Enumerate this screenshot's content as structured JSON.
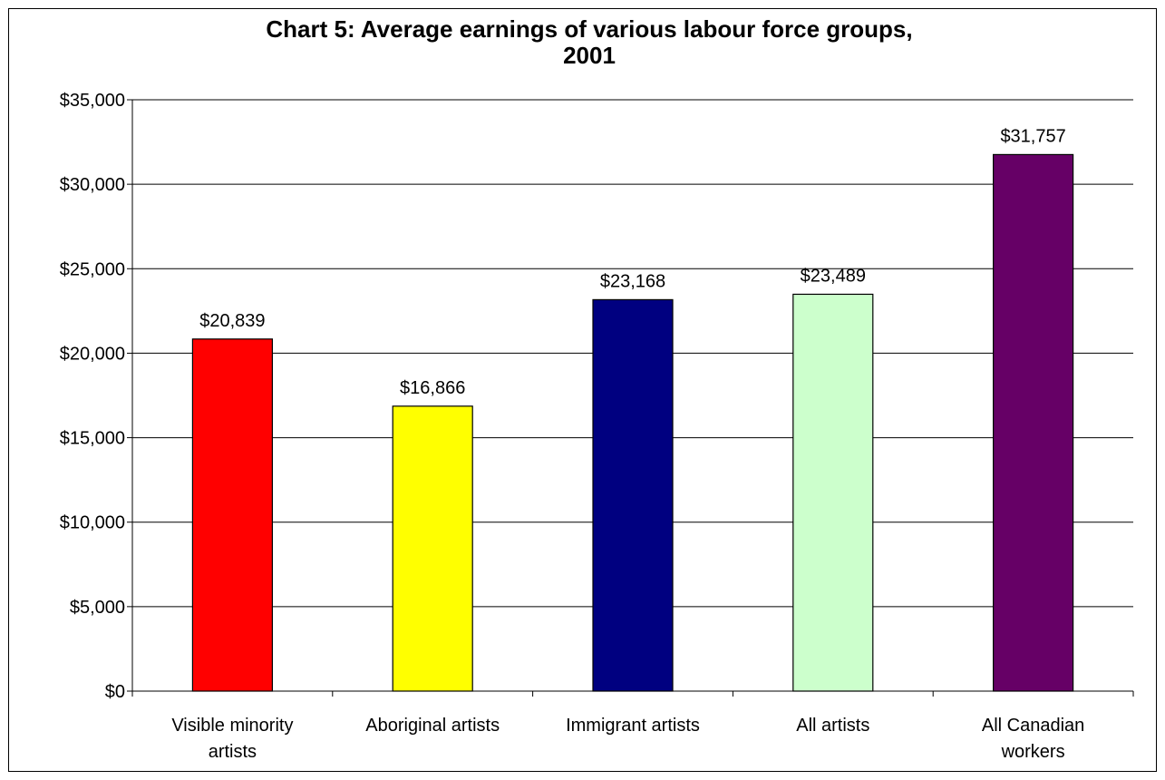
{
  "chart_data": {
    "type": "bar",
    "title_lines": [
      "Chart 5: Average earnings of various labour force groups,",
      "2001"
    ],
    "categories": [
      [
        "Visible minority",
        "artists"
      ],
      [
        "Aboriginal artists"
      ],
      [
        "Immigrant artists"
      ],
      [
        "All artists"
      ],
      [
        "All Canadian",
        "workers"
      ]
    ],
    "values": [
      20839,
      16866,
      23168,
      23489,
      31757
    ],
    "value_labels": [
      "$20,839",
      "$16,866",
      "$23,168",
      "$23,489",
      "$31,757"
    ],
    "bar_colors": [
      "#ff0000",
      "#ffff00",
      "#000080",
      "#ccffcc",
      "#660066"
    ],
    "ylim": [
      0,
      35000
    ],
    "yticks": [
      0,
      5000,
      10000,
      15000,
      20000,
      25000,
      30000,
      35000
    ],
    "ytick_labels": [
      "$0",
      "$5,000",
      "$10,000",
      "$15,000",
      "$20,000",
      "$25,000",
      "$30,000",
      "$35,000"
    ],
    "grid": true,
    "legend": "none",
    "xlabel": "",
    "ylabel": ""
  }
}
